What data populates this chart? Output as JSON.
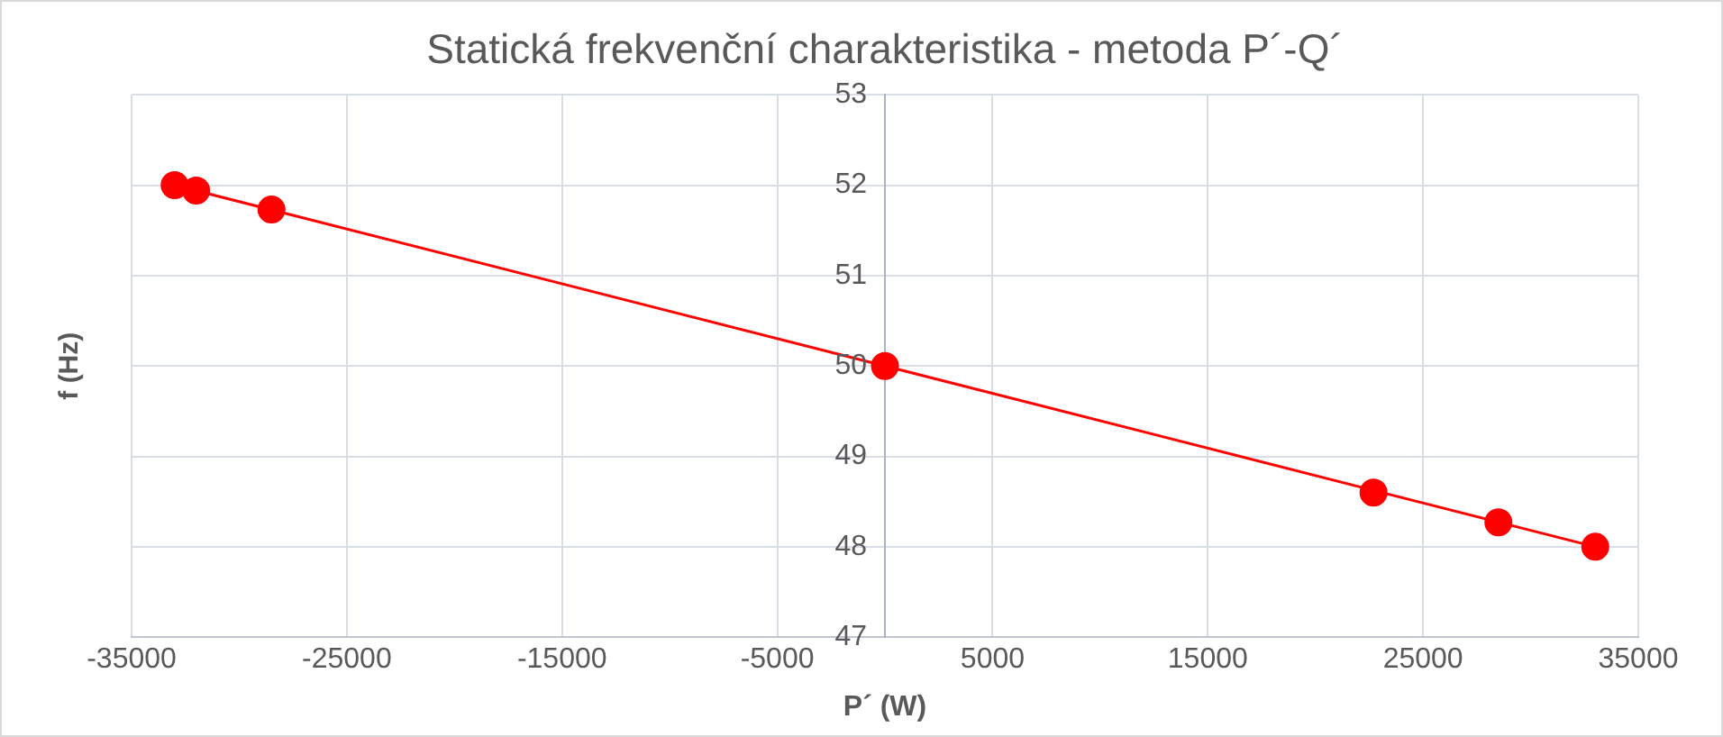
{
  "chart_data": {
    "type": "scatter",
    "title": "Statická frekvenční charakteristika - metoda P´-Q´",
    "xlabel": "P´ (W)",
    "ylabel": "f (Hz)",
    "x": [
      -33000,
      -32000,
      -28500,
      0,
      22700,
      28500,
      33000
    ],
    "series": [
      {
        "color": "#ff0000",
        "values": [
          52.0,
          51.94,
          51.73,
          50.0,
          48.6,
          48.27,
          48.0
        ]
      },
      {
        "type": "line",
        "color": "#ff0000",
        "x": [
          -33000,
          33000
        ],
        "values": [
          52.0,
          48.0
        ],
        "marker": "none",
        "line_style": "solid"
      }
    ],
    "marker": "circle",
    "xlim": [
      -35000,
      35000
    ],
    "xticks": [
      -35000,
      -25000,
      -15000,
      -5000,
      5000,
      15000,
      25000,
      35000
    ],
    "ylim": [
      47,
      53
    ],
    "yticks": [
      47,
      48,
      49,
      50,
      51,
      52,
      53
    ],
    "grid": true,
    "legend": false
  }
}
